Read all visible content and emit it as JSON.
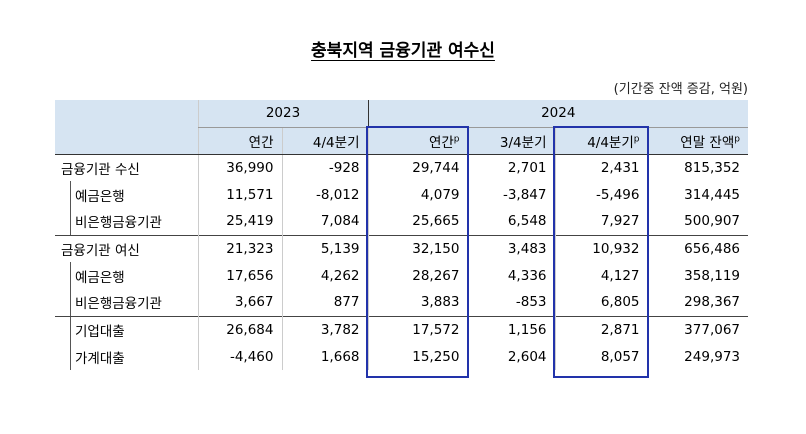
{
  "title": "충북지역 금융기관 여수신",
  "unit": "(기간중 잔액 증감, 억원)",
  "table": {
    "years": [
      {
        "label": "2023",
        "span": 2
      },
      {
        "label": "2024",
        "span": 4
      }
    ],
    "columns": [
      {
        "label": "연간"
      },
      {
        "label": "4/4분기"
      },
      {
        "label": "연간",
        "sup": "p"
      },
      {
        "label": "3/4분기"
      },
      {
        "label": "4/4분기",
        "sup": "p"
      },
      {
        "label": "연말 잔액",
        "sup": "p"
      }
    ],
    "rows": [
      {
        "label": "금융기관 수신",
        "indent": false,
        "values": [
          "36,990",
          "-928",
          "29,744",
          "2,701",
          "2,431",
          "815,352"
        ]
      },
      {
        "label": "예금은행",
        "indent": true,
        "values": [
          "11,571",
          "-8,012",
          "4,079",
          "-3,847",
          "-5,496",
          "314,445"
        ]
      },
      {
        "label": "비은행금융기관",
        "indent": true,
        "values": [
          "25,419",
          "7,084",
          "25,665",
          "6,548",
          "7,927",
          "500,907"
        ]
      },
      {
        "label": "금융기관 여신",
        "indent": false,
        "values": [
          "21,323",
          "5,139",
          "32,150",
          "3,483",
          "10,932",
          "656,486"
        ]
      },
      {
        "label": "예금은행",
        "indent": true,
        "values": [
          "17,656",
          "4,262",
          "28,267",
          "4,336",
          "4,127",
          "358,119"
        ]
      },
      {
        "label": "비은행금융기관",
        "indent": true,
        "values": [
          "3,667",
          "877",
          "3,883",
          "-853",
          "6,805",
          "298,367"
        ]
      },
      {
        "label": "기업대출",
        "indent": true,
        "values": [
          "26,684",
          "3,782",
          "17,572",
          "1,156",
          "2,871",
          "377,067"
        ]
      },
      {
        "label": "가계대출",
        "indent": true,
        "values": [
          "-4,460",
          "1,668",
          "15,250",
          "2,604",
          "8,057",
          "249,973"
        ]
      }
    ]
  }
}
